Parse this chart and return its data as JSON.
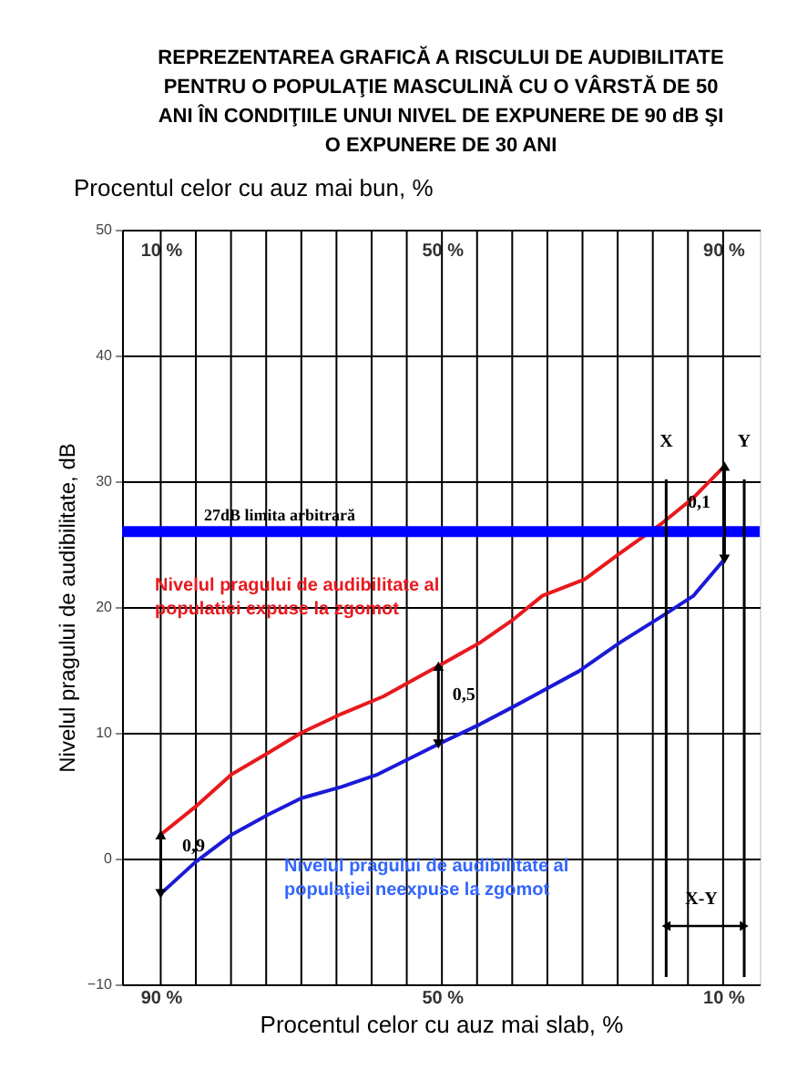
{
  "chart_data": {
    "type": "line",
    "title": [
      "REPREZENTAREA GRAFICĂ A RISCULUI DE AUDIBILITATE",
      "PENTRU O POPULAŢIE MASCULINĂ CU O VÂRSTĂ DE 50",
      "ANI ÎN CONDIŢIILE UNUI NIVEL DE EXPUNERE DE 90 dB ŞI",
      "O EXPUNERE DE 30 ANI"
    ],
    "xlabel": "Procentul celor cu auz mai slab, %",
    "x2label": "Procentul celor cu auz mai bun, %",
    "ylabel": "Nivelul pragului de audibilitate, dB",
    "series": [
      {
        "color": "#e8191e",
        "x": [
          90,
          85.1,
          79.9,
          74.7,
          70,
          64.3,
          58.3,
          50.5,
          44.5,
          40.1,
          35.7,
          29.7,
          24.6,
          18.6,
          14.2,
          9.8
        ],
        "values": [
          1.9,
          4.1,
          6.7,
          8.4,
          10,
          11.5,
          12.9,
          15.3,
          17.2,
          18.9,
          20.9,
          22.2,
          24.3,
          26.7,
          28.7,
          31.2
        ]
      },
      {
        "color": "#1a1ad6",
        "x": [
          90,
          85.1,
          79.9,
          74.7,
          70,
          64.3,
          59.1,
          50.5,
          44.5,
          39.4,
          30.5,
          24.6,
          18.6,
          14.2,
          9.8
        ],
        "values": [
          -2.8,
          -0.3,
          1.9,
          3.5,
          4.8,
          5.7,
          6.7,
          9.1,
          10.7,
          12.2,
          14.9,
          17.2,
          19.3,
          20.9,
          23.8
        ]
      }
    ],
    "xlim": [
      95.5,
      4.8
    ],
    "xticks": [
      {
        "value": 90,
        "label": "90 %"
      },
      {
        "value": 85,
        "label": null
      },
      {
        "value": 80,
        "label": null
      },
      {
        "value": 75,
        "label": null
      },
      {
        "value": 70,
        "label": null
      },
      {
        "value": 65,
        "label": null
      },
      {
        "value": 60,
        "label": null
      },
      {
        "value": 55,
        "label": null
      },
      {
        "value": 50,
        "label": "50 %"
      },
      {
        "value": 45,
        "label": null
      },
      {
        "value": 40,
        "label": null
      },
      {
        "value": 35,
        "label": null
      },
      {
        "value": 30,
        "label": null
      },
      {
        "value": 25,
        "label": null
      },
      {
        "value": 20,
        "label": null
      },
      {
        "value": 15,
        "label": null
      },
      {
        "value": 10,
        "label": "10 %"
      }
    ],
    "x2lim": [
      4.5,
      95.2
    ],
    "x2ticks": [
      {
        "value": 10,
        "label": "10 %"
      },
      {
        "value": 50,
        "label": "50 %"
      },
      {
        "value": 90,
        "label": "90 %"
      }
    ],
    "ylim": [
      -10,
      50
    ],
    "yticks": [
      -10,
      0,
      10,
      20,
      30,
      40,
      50
    ],
    "grid": true,
    "ref_lines": [
      {
        "axis": "y",
        "value": 26,
        "label": "27dB limita arbitrară",
        "color": "#0000ff"
      },
      {
        "axis": "x",
        "value": 18.1,
        "label": "X",
        "color": "#000000"
      },
      {
        "axis": "x",
        "value": 7.0,
        "label": "Y",
        "color": "#000000"
      }
    ],
    "annotations": [
      "Nivelul pragului de audibilitate al\npopulatiei expuse la zgomot",
      "Nivelul pragului de audibilitate al\npopulaţiei neexpuse la zgomot",
      {
        "text": "0,9",
        "x": 90,
        "y": 1.9
      },
      {
        "text": "0,5",
        "x": 50.5,
        "y": 15.3
      },
      {
        "text": "0,1",
        "x": 9.8,
        "y": 31.2
      },
      "X-Y"
    ]
  }
}
